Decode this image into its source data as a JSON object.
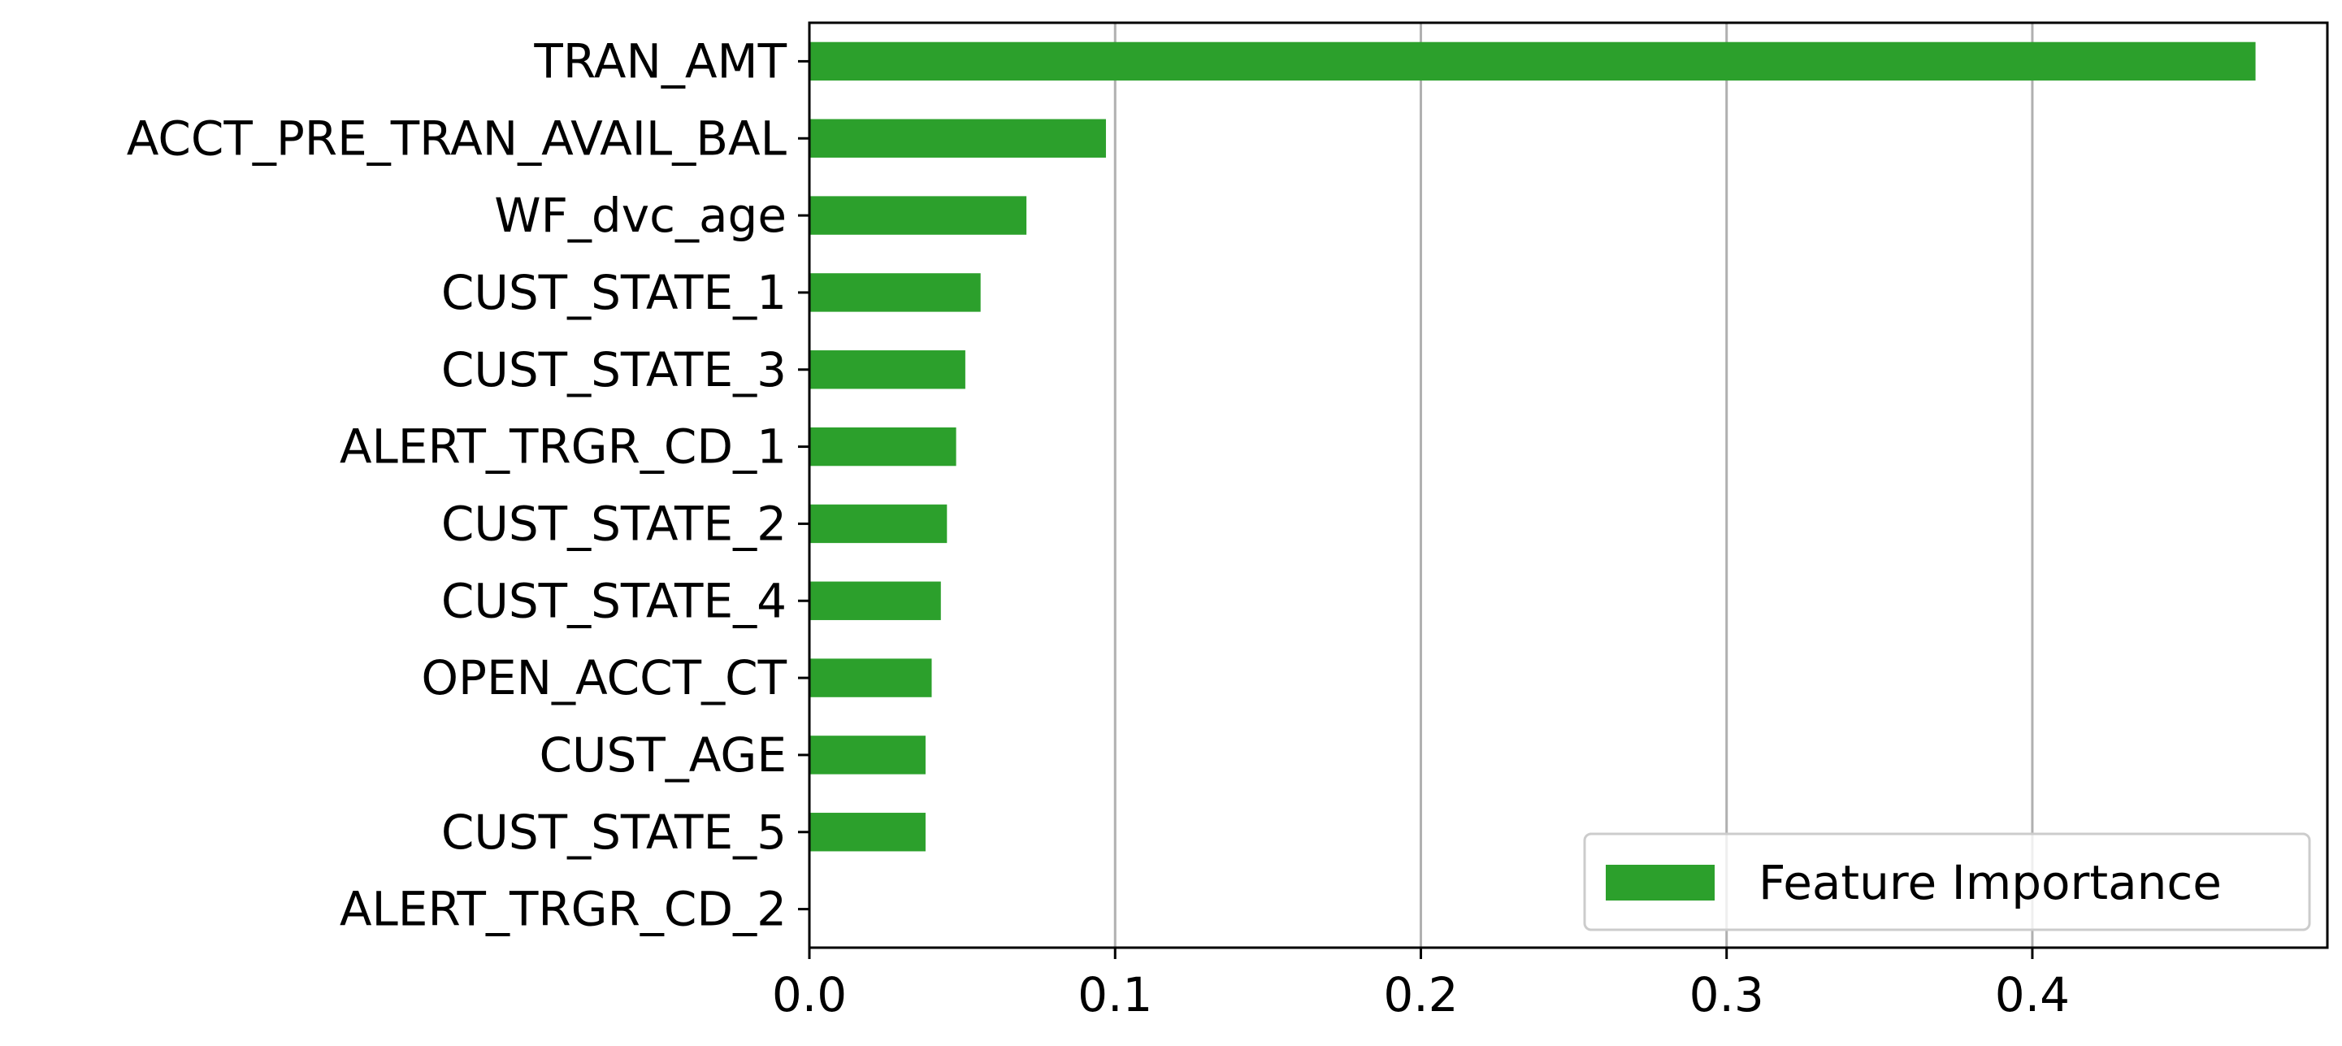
{
  "chart_data": {
    "type": "bar",
    "orientation": "horizontal",
    "categories": [
      "TRAN_AMT",
      "ACCT_PRE_TRAN_AVAIL_BAL",
      "WF_dvc_age",
      "CUST_STATE_1",
      "CUST_STATE_3",
      "ALERT_TRGR_CD_1",
      "CUST_STATE_2",
      "CUST_STATE_4",
      "OPEN_ACCT_CT",
      "CUST_AGE",
      "CUST_STATE_5",
      "ALERT_TRGR_CD_2"
    ],
    "series": [
      {
        "name": "Feature Importance",
        "values": [
          0.473,
          0.097,
          0.071,
          0.056,
          0.051,
          0.048,
          0.045,
          0.043,
          0.04,
          0.038,
          0.038,
          0.0
        ],
        "color": "#2ca02c"
      }
    ],
    "title": "",
    "xlabel": "",
    "ylabel": "",
    "xlim": [
      0,
      0.4965
    ],
    "xticks": [
      0.0,
      0.1,
      0.2,
      0.3,
      0.4
    ],
    "xtick_labels": [
      "0.0",
      "0.1",
      "0.2",
      "0.3",
      "0.4"
    ],
    "grid": "x-axis vertical gridlines",
    "legend": {
      "position": "lower-right",
      "entries": [
        "Feature Importance"
      ]
    }
  }
}
